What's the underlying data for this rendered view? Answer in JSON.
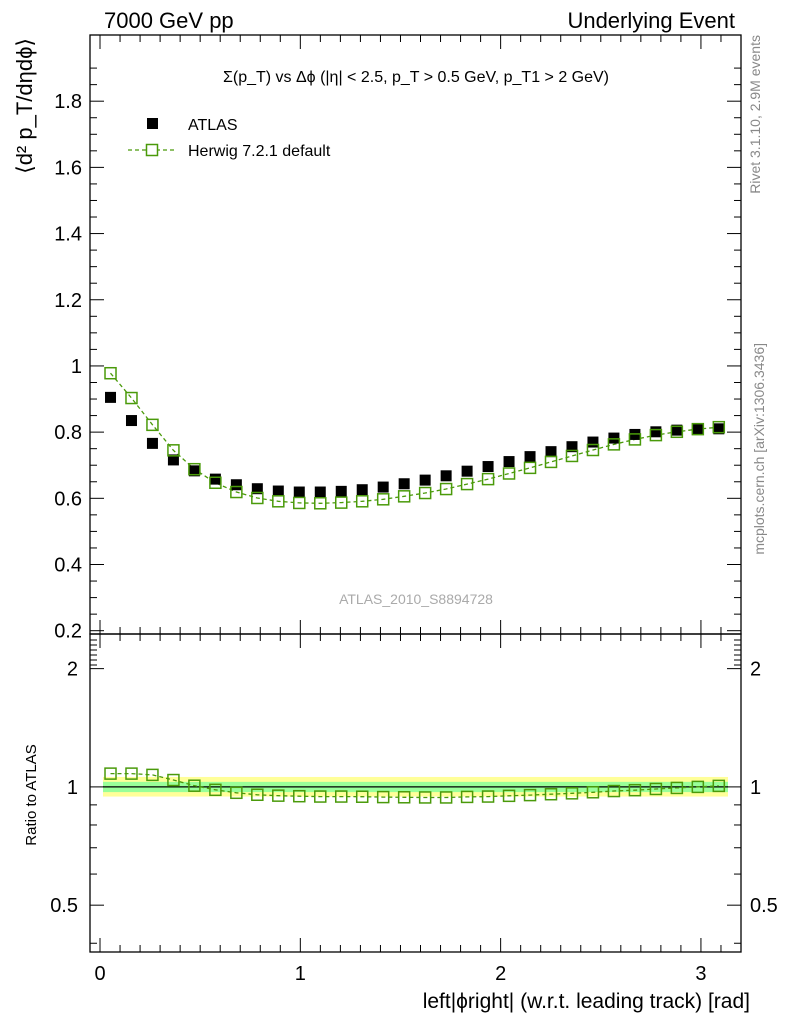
{
  "header": {
    "left": "7000 GeV pp",
    "right": "Underlying Event"
  },
  "side_labels": {
    "rivet": "Rivet 3.1.10,  2.9M events",
    "mcplots": "mcplots.cern.ch [arXiv:1306.3436]"
  },
  "colors": {
    "atlas": "#000000",
    "herwig": "#4a9a0a",
    "band_outer": "#ffff99",
    "band_inner": "#99ff99"
  },
  "chart_data": [
    {
      "type": "scatter",
      "panel": "main",
      "title": "Σ(p_T) vs Δϕ (|η| < 2.5, p_T > 0.5 GeV, p_T1 > 2 GeV)",
      "ylabel": "⟨d² p_T/dηdϕ⟩",
      "watermark": "ATLAS_2010_S8894728",
      "xlim": [
        -0.05,
        3.2
      ],
      "ylim": [
        0.19,
        2.0
      ],
      "yticks": [
        0.2,
        0.4,
        0.6,
        0.8,
        1,
        1.2,
        1.4,
        1.6,
        1.8
      ],
      "legend_position": "top-left",
      "x": [
        0.0524,
        0.1571,
        0.2618,
        0.3665,
        0.4712,
        0.576,
        0.6807,
        0.7854,
        0.8901,
        0.9948,
        1.0996,
        1.2043,
        1.309,
        1.4137,
        1.5184,
        1.6232,
        1.7279,
        1.8326,
        1.9373,
        2.042,
        2.1468,
        2.2515,
        2.3562,
        2.4609,
        2.5656,
        2.6704,
        2.7751,
        2.8798,
        2.9845,
        3.0892
      ],
      "series": [
        {
          "name": "ATLAS",
          "marker": "filled-square",
          "values": [
            0.905,
            0.835,
            0.766,
            0.716,
            0.683,
            0.658,
            0.641,
            0.629,
            0.622,
            0.619,
            0.619,
            0.621,
            0.626,
            0.634,
            0.644,
            0.655,
            0.668,
            0.682,
            0.696,
            0.711,
            0.726,
            0.741,
            0.756,
            0.77,
            0.782,
            0.793,
            0.801,
            0.806,
            0.809,
            0.81
          ]
        },
        {
          "name": "Herwig 7.2.1 default",
          "marker": "open-square-dashed",
          "values": [
            0.978,
            0.903,
            0.822,
            0.745,
            0.688,
            0.647,
            0.619,
            0.601,
            0.591,
            0.586,
            0.585,
            0.587,
            0.591,
            0.597,
            0.606,
            0.616,
            0.628,
            0.643,
            0.658,
            0.675,
            0.692,
            0.71,
            0.728,
            0.746,
            0.763,
            0.778,
            0.791,
            0.801,
            0.809,
            0.815
          ]
        }
      ]
    },
    {
      "type": "scatter",
      "panel": "ratio",
      "ylabel": "Ratio to ATLAS",
      "xlabel": "left|ϕright| (w.r.t. leading track) [rad]",
      "xlim": [
        -0.05,
        3.2
      ],
      "ylim": [
        0.38,
        2.45
      ],
      "yscale": "log",
      "yticks": [
        0.5,
        1,
        2
      ],
      "xticks": [
        0,
        1,
        2,
        3
      ],
      "band_outer": [
        0.945,
        1.06
      ],
      "band_inner": [
        0.97,
        1.03
      ],
      "series": [
        {
          "name": "Herwig 7.2.1 default",
          "values": [
            1.081,
            1.081,
            1.073,
            1.041,
            1.007,
            0.983,
            0.966,
            0.955,
            0.95,
            0.947,
            0.945,
            0.945,
            0.944,
            0.942,
            0.941,
            0.94,
            0.94,
            0.943,
            0.945,
            0.949,
            0.953,
            0.958,
            0.963,
            0.969,
            0.976,
            0.981,
            0.988,
            0.994,
            1.0,
            1.006
          ]
        }
      ]
    }
  ]
}
